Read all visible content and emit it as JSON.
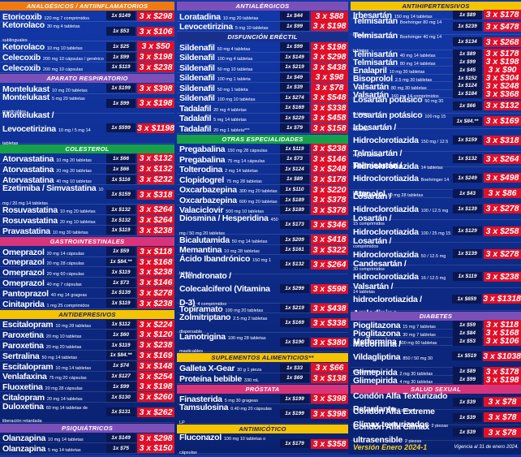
{
  "columns": [
    {
      "sections": [
        {
          "title": "ANALGÉSICOS / ANTIINFLAMATORIOS",
          "items": [
            {
              "name": "Etoricoxib",
              "desc": "120 mg 7 comprimidos",
              "price": "1x $149",
              "promo": "3 x $298"
            },
            {
              "name": "Ketorolaco",
              "desc": "30 mg 4 tabletas sublinguales",
              "price": "1x $53",
              "promo": "3 x $106"
            },
            {
              "name": "Ketorolaco",
              "desc": "10 mg 10 tabletas",
              "price": "1x $25",
              "promo": "3 x $50"
            },
            {
              "name": "Celecoxib",
              "desc": "200 mg 10 cápsulas / genérico",
              "price": "1x $99",
              "promo": "3 x $198"
            },
            {
              "name": "Celecoxib",
              "desc": "200 mg 10 cápsulas",
              "price": "1x $119",
              "promo": "3 x $238"
            }
          ]
        },
        {
          "title": "APARATO RESPIRATORIO",
          "items": [
            {
              "name": "Montelukast",
              "desc": "10 mg 20 tabletas",
              "price": "1x $199",
              "promo": "3 x $398"
            },
            {
              "name": "Montelukast",
              "desc": "5 mg 20 tabletas masticables",
              "price": "1x $99",
              "promo": "3 x $198"
            },
            {
              "name": "Montelukast / Levocetirizina",
              "desc": "10 mg / 5 mg 14 tabletas",
              "price": "1x $599",
              "promo": "3 x $1198"
            }
          ]
        },
        {
          "title": "COLESTEROL",
          "items": [
            {
              "name": "Atorvastatina",
              "desc": "10 mg 20 tabletas",
              "price": "1x $66",
              "promo": "3 x $132"
            },
            {
              "name": "Atorvastatina",
              "desc": "20 mg 20 tabletas",
              "price": "1x $66",
              "promo": "3 x $132"
            },
            {
              "name": "Atorvastatina",
              "desc": "40 mg 10 tabletas",
              "price": "1x $116",
              "promo": "3 x $232"
            },
            {
              "name": "Ezetimiba / Simvastatina",
              "desc": "10 mg / 20 mg 14 tabletas",
              "price": "1x $159",
              "promo": "3 x $318"
            },
            {
              "name": "Rosuvastatina",
              "desc": "10 mg 20 tabletas",
              "price": "1x $132",
              "promo": "3 x $264"
            },
            {
              "name": "Rosuvastatina",
              "desc": "20 mg 10 tabletas",
              "price": "1x $132",
              "promo": "3 x $264"
            },
            {
              "name": "Pravastatina",
              "desc": "10 mg 30 tabletas",
              "price": "1x $119",
              "promo": "3 x $238"
            }
          ]
        },
        {
          "title": "GASTROINTESTINALES",
          "items": [
            {
              "name": "Omeprazol",
              "desc": "20 mg 14 cápsulas",
              "price": "1x $59",
              "promo": "3 x $118"
            },
            {
              "name": "Omeprazol",
              "desc": "20 mg 28 cápsulas",
              "price": "1x $84.**",
              "promo": "3 x $168"
            },
            {
              "name": "Omeprazol",
              "desc": "20 mg 60 cápsulas",
              "price": "1x $119",
              "promo": "3 x $238"
            },
            {
              "name": "Omeprazol",
              "desc": "40 mg 7 cápsulas",
              "price": "1x $73",
              "promo": "3 x $146"
            },
            {
              "name": "Pantoprazol",
              "desc": "40 mg 14 grageas",
              "price": "1x $139",
              "promo": "3 x $278"
            },
            {
              "name": "Cinitaprida",
              "desc": "1 mg 25 comprimidos",
              "price": "1x $119",
              "promo": "3 x $238"
            }
          ]
        },
        {
          "title": "ANTIDEPRESIVOS",
          "items": [
            {
              "name": "Escitalopram",
              "desc": "10 mg 28 tabletas",
              "price": "1x $112",
              "promo": "3 x $224"
            },
            {
              "name": "Paroxetina",
              "desc": "20 mg 10 tabletas",
              "price": "1x $60",
              "promo": "3 x $120"
            },
            {
              "name": "Paroxetina",
              "desc": "20 mg 20 tabletas",
              "price": "1x $119",
              "promo": "3 x $238"
            },
            {
              "name": "Sertralina",
              "desc": "50 mg 14 tabletas",
              "price": "1x $84.**",
              "promo": "3 x $169"
            },
            {
              "name": "Escitalopram",
              "desc": "10 mg 14 tabletas",
              "price": "1x $74",
              "promo": "3 x $148"
            },
            {
              "name": "Venlafaxina",
              "desc": "75 mg 20 cápsulas",
              "price": "1x $127",
              "promo": "3 x $254"
            },
            {
              "name": "Fluoxetina",
              "desc": "20 mg 28 cápsulas",
              "price": "1x $99",
              "promo": "3 x $198"
            },
            {
              "name": "Citalopram",
              "desc": "20 mg 14 tabletas",
              "price": "1x $130",
              "promo": "3 x $260"
            },
            {
              "name": "Duloxetina",
              "desc": "60 mg 14 tabletas de liberación retardada",
              "price": "1x $131",
              "promo": "3 x $262"
            }
          ]
        },
        {
          "title": "PSIQUIÁTRICOS",
          "items": [
            {
              "name": "Olanzapina",
              "desc": "10 mg 14 tabletas",
              "price": "1x $149",
              "promo": "3 x $298"
            },
            {
              "name": "Olanzapina",
              "desc": "5 mg 14 tabletas",
              "price": "1x $75",
              "promo": "3 x $150"
            }
          ]
        }
      ]
    },
    {
      "sections": [
        {
          "title": "ANTIALÉRGICOS",
          "items": [
            {
              "name": "Loratadina",
              "desc": "10 mg 20 tabletas",
              "price": "1x $44",
              "promo": "3 x $88"
            },
            {
              "name": "Levocetirizina",
              "desc": "5 mg 10 tabletas",
              "price": "1x $99",
              "promo": "3 x $198"
            }
          ]
        },
        {
          "title": "DISFUNCIÓN ERÉCTIL",
          "items": [
            {
              "name": "Sildenafil",
              "desc": "50 mg 4 tabletas",
              "price": "1x $99",
              "promo": "3 x $198"
            },
            {
              "name": "Sildenafil",
              "desc": "100 mg 4 tabletas",
              "price": "1x $149",
              "promo": "3 x $298"
            },
            {
              "name": "Sildenafil",
              "desc": "50 mg 10 tabletas",
              "price": "1x $219",
              "promo": "3 x $438"
            },
            {
              "name": "Sildenafil",
              "desc": "100 mg 1 tableta",
              "price": "1x $49",
              "promo": "3 x $98"
            },
            {
              "name": "Sildenafil",
              "desc": "50 mg 1 tableta",
              "price": "1x $39",
              "promo": "3 x $78"
            },
            {
              "name": "Sildenafil",
              "desc": "100 mg 10 tabletas",
              "price": "1x $274",
              "promo": "3 x $548"
            },
            {
              "name": "Tadalafil",
              "desc": "20 mg 4 tabletas",
              "price": "1x $169",
              "promo": "3 x $338"
            },
            {
              "name": "Tadalafil",
              "desc": "5 mg 14 tabletas",
              "price": "1x $229",
              "promo": "3 x $458"
            },
            {
              "name": "Tadalafil",
              "desc": "20 mg 1 tableta***",
              "price": "1x $79",
              "promo": "3 x $158"
            }
          ]
        },
        {
          "title": "OTRAS ESPECIALIDADES",
          "items": [
            {
              "name": "Pregabalina",
              "desc": "150 mg 28 cápsulas",
              "price": "1x $119",
              "promo": "3 x $238"
            },
            {
              "name": "Pregabalina",
              "desc": "75 mg 14 cápsulas",
              "price": "1x $73",
              "promo": "3 x $146"
            },
            {
              "name": "Tolterodina",
              "desc": "2 mg 14 tabletas",
              "price": "1x $124",
              "promo": "3 x $248"
            },
            {
              "name": "Clopidogrel",
              "desc": "75 mg 28 tabletas",
              "price": "1x $89",
              "promo": "3 x $178"
            },
            {
              "name": "Oxcarbazepina",
              "desc": "300 mg 20 tabletas",
              "price": "1x $110",
              "promo": "3 x $220"
            },
            {
              "name": "Oxcarbazepina",
              "desc": "600 mg 20 tabletas",
              "price": "1x $189",
              "promo": "3 x $378"
            },
            {
              "name": "Valaciclovir",
              "desc": "500 mg 10 tabletas",
              "price": "1x $189",
              "promo": "3 x $378"
            },
            {
              "name": "Diosmina / Hesperidina",
              "desc": "450 mg / 50 mg 20 tabletas",
              "price": "1x $173",
              "promo": "3 x $346"
            },
            {
              "name": "Bicalutamida",
              "desc": "50 mg 14 tabletas",
              "price": "1x $209",
              "promo": "3 x $418"
            },
            {
              "name": "Memantina",
              "desc": "10 mg 28 tabletas",
              "price": "1x $161",
              "promo": "3 x $322"
            },
            {
              "name": "Ácido Ibandrónico",
              "desc": "150 mg 1 tableta",
              "price": "1x $132",
              "promo": "3 x $264"
            },
            {
              "name": "Alendronato / Colecalciferol (Vitamina D-3)",
              "desc": "4 comprimidos",
              "price": "1x $299",
              "promo": "3 x $598"
            },
            {
              "name": "Topiramato",
              "desc": "100 mg 20 tabletas",
              "price": "1x $219",
              "promo": "3 x $438"
            },
            {
              "name": "Zolmitriptano",
              "desc": "2.5 mg 2 tabletas dispersable",
              "price": "1x $169",
              "promo": "3 x $338"
            },
            {
              "name": "Lamotrigina",
              "desc": "100 mg 28 tabletas masticables",
              "price": "1x $190",
              "promo": "3 x $380"
            }
          ]
        },
        {
          "title": "SUPLEMENTOS ALIMENTICIOS**",
          "items": [
            {
              "name": "Galleta X-Gear",
              "desc": "30 g 1 pieza",
              "price": "1x $33",
              "promo": "3 x $66"
            },
            {
              "name": "Proteína bebible",
              "desc": "330 mL",
              "price": "1x $69",
              "promo": "3 x $138"
            }
          ]
        },
        {
          "title": "PRÓSTATA",
          "items": [
            {
              "name": "Finasterida",
              "desc": "5 mg 30 grageas",
              "price": "1x $199",
              "promo": "3 x $398"
            },
            {
              "name": "Tamsulosina",
              "desc": "0.40 mg 20 cápsulas LP",
              "price": "1x $199",
              "promo": "3 x $398"
            }
          ]
        },
        {
          "title": "ANTIMICÓTICO",
          "items": [
            {
              "name": "Fluconazol",
              "desc": "100 mg 10 tabletas o cápsulas",
              "price": "1x $179",
              "promo": "3 x $358"
            }
          ]
        }
      ]
    },
    {
      "sections": [
        {
          "title": "ANTIHIPERTENSIVOS",
          "items": [
            {
              "name": "Irbesartán",
              "desc": "150 mg 14 tabletas",
              "price": "1x $89",
              "promo": "3 x $178"
            },
            {
              "name": "Telmisartán",
              "desc": "Boehringer 80 mg 14 tabletas",
              "price": "1x $239",
              "promo": "3 x $478"
            },
            {
              "name": "Telmisartán",
              "desc": "Boehringer 40 mg 14 tabletas",
              "price": "1x $134",
              "promo": "3 x $268"
            },
            {
              "name": "Telmisartán",
              "desc": "40 mg 14 tabletas",
              "price": "1x $89",
              "promo": "3 x $178"
            },
            {
              "name": "Telmisartán",
              "desc": "80 mg 14 tabletas",
              "price": "1x $99",
              "promo": "3 x $198"
            },
            {
              "name": "Enalapril",
              "desc": "10 mg 30 tabletas",
              "price": "1x $45",
              "promo": "3 x $90"
            },
            {
              "name": "Bisoprolol",
              "desc": "2.5 mg 30 tabletas",
              "price": "1x $152",
              "promo": "3 x $304"
            },
            {
              "name": "Valsartán",
              "desc": "80 mg 30 tabletas",
              "price": "1x $124",
              "promo": "3 x $248"
            },
            {
              "name": "Valsartán",
              "desc": "160 mg 14 comprimidos",
              "price": "1x $184",
              "promo": "3 x $368"
            },
            {
              "name": "Losartán potásico",
              "desc": "50 mg 30 tabletas",
              "price": "1x $66",
              "promo": "3 x $132"
            },
            {
              "name": "Losartán potásico",
              "desc": "100 mg 15 tabletas",
              "price": "1x $84.**",
              "promo": "3 x $169"
            },
            {
              "name": "Irbesartán / Hidroclorotiazida",
              "desc": "150 mg / 12.5 mg 14 tabletas",
              "price": "1x $159",
              "promo": "3 x $318"
            },
            {
              "name": "Telmisartán / Hidroclorotiazida",
              "desc": "14 tabletas",
              "price": "1x $132",
              "promo": "3 x $264"
            },
            {
              "name": "Telmisartán / Hidroclorotiazida",
              "desc": "Boehringer 14 tabletas",
              "price": "1x $249",
              "promo": "3 x $498"
            },
            {
              "name": "Atenolol",
              "desc": "50 mg 28 tabletas",
              "price": "1x $43",
              "promo": "3 x $86"
            },
            {
              "name": "Losartán / Hidroclorotiazida",
              "desc": "100 / 12.5 mg 15 comprimidos",
              "price": "1x $139",
              "promo": "3 x $278"
            },
            {
              "name": "Losartán / Hidroclorotiazida",
              "desc": "100 / 25 mg 15 comprimidos",
              "price": "1x $129",
              "promo": "3 x $258"
            },
            {
              "name": "Losartán / Hidroclorotiazida",
              "desc": "50 / 12.5 mg 30 comprimidos",
              "price": "1x $139",
              "promo": "3 x $278"
            },
            {
              "name": "Candesartán / Hidroclorotiazida",
              "desc": "16 / 12.5 mg 14 tabletas",
              "price": "1x $119",
              "promo": "3 x $238"
            },
            {
              "name": "Valsartán / hidroclorotiazida / Amlodipino",
              "desc": "14 comprimidos",
              "price": "1x $659",
              "promo": "3 x $1318"
            }
          ]
        },
        {
          "title": "DIABETES",
          "items": [
            {
              "name": "Pioglitazona",
              "desc": "15 mg 7 tabletas",
              "price": "1x $59",
              "promo": "3 x $118"
            },
            {
              "name": "Pioglitazona",
              "desc": "30 mg 7 tabletas",
              "price": "1x $84",
              "promo": "3 x $168"
            },
            {
              "name": "Metformina",
              "desc": "500 mg 60 tabletas",
              "price": "1x $53",
              "promo": "3 x $106"
            },
            {
              "name": "Metformina / Vildagliptina",
              "desc": "850 / 50 mg 30 comprimidos",
              "price": "1x $519",
              "promo": "3 x $1038"
            },
            {
              "name": "Glimepirida",
              "desc": "2 mg 30 tabletas",
              "price": "1x $89",
              "promo": "3 x $178"
            },
            {
              "name": "Glimepirida",
              "desc": "4 mg 30 tabletas",
              "price": "1x $99",
              "promo": "3 x $198"
            }
          ]
        },
        {
          "title": "SALUD SEXUAL",
          "items": [
            {
              "name": "Condón Alfa Texturizado Retardante",
              "desc": "3 piezas",
              "price": "1x $39",
              "promo": "3 x $78"
            },
            {
              "name": "Condón Alfa Extreme Clímax texturizados",
              "desc": "2 piezas",
              "price": "1x $39",
              "promo": "3 x $78"
            },
            {
              "name": "Condón Alfa Clímax ultrasensible",
              "desc": "2 piezas",
              "price": "1x $39",
              "promo": "3 x $78"
            }
          ]
        }
      ]
    }
  ],
  "footer": {
    "version": "Versión Enero 2024-1",
    "validity": "Vigencia al 31 de enero 2024."
  }
}
